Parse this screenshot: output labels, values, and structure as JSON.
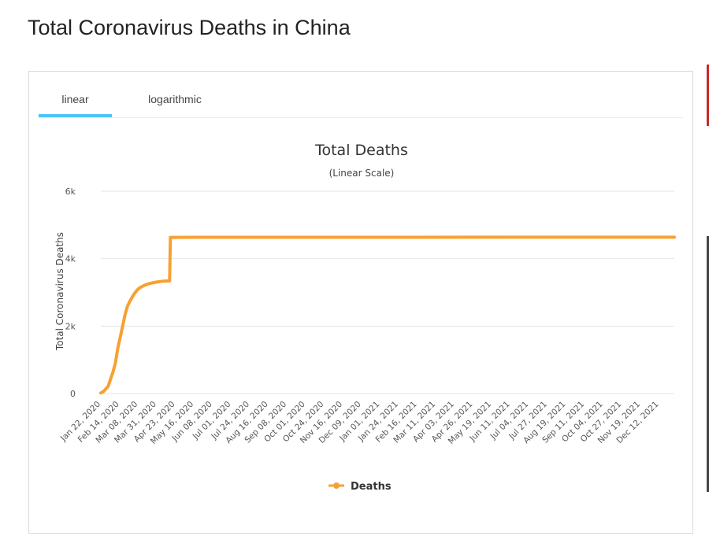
{
  "page": {
    "title": "Total Coronavirus Deaths in China"
  },
  "tabs": [
    {
      "label": "linear",
      "active": true
    },
    {
      "label": "logarithmic",
      "active": false
    }
  ],
  "colors": {
    "series": "#f7a133",
    "tab_active": "#4fc3f7",
    "grid": "#e6e6e6"
  },
  "chart_data": {
    "type": "line",
    "title": "Total Deaths",
    "subtitle": "(Linear Scale)",
    "xlabel": "",
    "ylabel": "Total Coronavirus Deaths",
    "ylim": [
      0,
      6000
    ],
    "yticks": [
      0,
      2000,
      4000,
      6000
    ],
    "ytick_labels": [
      "0",
      "2k",
      "4k",
      "6k"
    ],
    "xlim": [
      "2020-01-22",
      "2021-12-31"
    ],
    "grid": true,
    "legend_position": "bottom",
    "xtick_labels": [
      "Jan 22, 2020",
      "Feb 14, 2020",
      "Mar 08, 2020",
      "Mar 31, 2020",
      "Apr 23, 2020",
      "May 16, 2020",
      "Jun 08, 2020",
      "Jul 01, 2020",
      "Jul 24, 2020",
      "Aug 16, 2020",
      "Sep 08, 2020",
      "Oct 01, 2020",
      "Oct 24, 2020",
      "Nov 16, 2020",
      "Dec 09, 2020",
      "Jan 01, 2021",
      "Jan 24, 2021",
      "Feb 16, 2021",
      "Mar 11, 2021",
      "Apr 03, 2021",
      "Apr 26, 2021",
      "May 19, 2021",
      "Jun 11, 2021",
      "Jul 04, 2021",
      "Jul 27, 2021",
      "Aug 19, 2021",
      "Sep 11, 2021",
      "Oct 04, 2021",
      "Oct 27, 2021",
      "Nov 19, 2021",
      "Dec 12, 2021"
    ],
    "series": [
      {
        "name": "Deaths",
        "points": [
          [
            "2020-01-22",
            17
          ],
          [
            "2020-01-25",
            56
          ],
          [
            "2020-01-28",
            132
          ],
          [
            "2020-01-31",
            213
          ],
          [
            "2020-02-03",
            425
          ],
          [
            "2020-02-06",
            636
          ],
          [
            "2020-02-09",
            908
          ],
          [
            "2020-02-12",
            1350
          ],
          [
            "2020-02-15",
            1665
          ],
          [
            "2020-02-18",
            2004
          ],
          [
            "2020-02-21",
            2345
          ],
          [
            "2020-02-24",
            2595
          ],
          [
            "2020-02-27",
            2744
          ],
          [
            "2020-03-01",
            2870
          ],
          [
            "2020-03-04",
            2981
          ],
          [
            "2020-03-07",
            3070
          ],
          [
            "2020-03-10",
            3136
          ],
          [
            "2020-03-15",
            3199
          ],
          [
            "2020-03-20",
            3248
          ],
          [
            "2020-03-25",
            3281
          ],
          [
            "2020-03-31",
            3305
          ],
          [
            "2020-04-08",
            3333
          ],
          [
            "2020-04-16",
            3342
          ],
          [
            "2020-04-17",
            4632
          ],
          [
            "2020-06-01",
            4634
          ],
          [
            "2021-01-01",
            4634
          ],
          [
            "2021-06-01",
            4636
          ],
          [
            "2021-12-31",
            4636
          ]
        ]
      }
    ]
  }
}
